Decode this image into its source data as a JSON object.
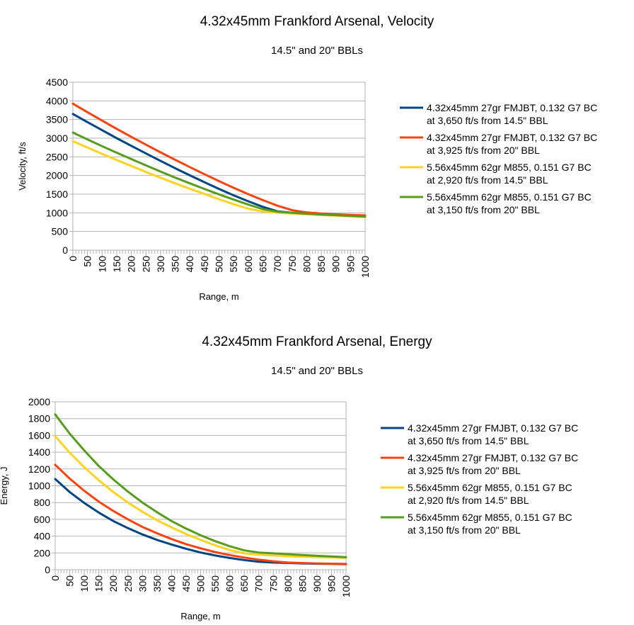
{
  "chart_data": [
    {
      "type": "line",
      "title": "4.32x45mm Frankford Arsenal, Velocity",
      "subtitle": "14.5\" and 20\" BBLs",
      "xlabel": "Range, m",
      "ylabel": "Velocity, ft/s",
      "xlim": [
        0,
        1000
      ],
      "ylim": [
        0,
        4500
      ],
      "x_ticks": [
        0,
        50,
        100,
        150,
        200,
        250,
        300,
        350,
        400,
        450,
        500,
        550,
        600,
        650,
        700,
        750,
        800,
        850,
        900,
        950,
        1000
      ],
      "y_ticks": [
        0,
        500,
        1000,
        1500,
        2000,
        2500,
        3000,
        3500,
        4000,
        4500
      ],
      "grid": true,
      "legend_position": "right",
      "x": [
        0,
        50,
        100,
        150,
        200,
        250,
        300,
        350,
        400,
        450,
        500,
        550,
        600,
        650,
        700,
        750,
        800,
        850,
        900,
        950,
        1000
      ],
      "series": [
        {
          "name": "4.32x45mm 27gr FMJBT, 0.132 G7 BC at 3,650 ft/s from 14.5\" BBL",
          "color": "#004586",
          "values": [
            3650,
            3430,
            3215,
            3000,
            2795,
            2590,
            2390,
            2195,
            2005,
            1820,
            1640,
            1470,
            1310,
            1160,
            1040,
            1000,
            970,
            950,
            930,
            915,
            900
          ]
        },
        {
          "name": "4.32x45mm 27gr FMJBT, 0.132 G7 BC at 3,925 ft/s from 20\" BBL",
          "color": "#ff420e",
          "values": [
            3925,
            3695,
            3470,
            3250,
            3035,
            2825,
            2620,
            2420,
            2225,
            2035,
            1850,
            1670,
            1500,
            1340,
            1190,
            1070,
            1010,
            980,
            960,
            945,
            930
          ]
        },
        {
          "name": "5.56x45mm 62gr M855, 0.151 G7 BC at 2,920 ft/s from 14.5\" BBL",
          "color": "#ffd320",
          "values": [
            2920,
            2750,
            2580,
            2415,
            2255,
            2095,
            1940,
            1790,
            1645,
            1505,
            1365,
            1230,
            1110,
            1035,
            1005,
            980,
            960,
            940,
            925,
            905,
            885
          ]
        },
        {
          "name": "5.56x45mm 62gr M855, 0.151 G7 BC at 3,150 ft/s from 20\" BBL",
          "color": "#579d1c",
          "values": [
            3150,
            2965,
            2785,
            2610,
            2440,
            2270,
            2105,
            1945,
            1790,
            1640,
            1495,
            1355,
            1220,
            1100,
            1030,
            1000,
            975,
            955,
            935,
            915,
            900
          ]
        }
      ]
    },
    {
      "type": "line",
      "title": "4.32x45mm Frankford Arsenal, Energy",
      "subtitle": "14.5\" and 20\" BBLs",
      "xlabel": "Range, m",
      "ylabel": "Energy, J",
      "xlim": [
        0,
        1000
      ],
      "ylim": [
        0,
        2000
      ],
      "x_ticks": [
        0,
        50,
        100,
        150,
        200,
        250,
        300,
        350,
        400,
        450,
        500,
        550,
        600,
        650,
        700,
        750,
        800,
        850,
        900,
        950,
        1000
      ],
      "y_ticks": [
        0,
        200,
        400,
        600,
        800,
        1000,
        1200,
        1400,
        1600,
        1800,
        2000
      ],
      "grid": true,
      "legend_position": "right",
      "x": [
        0,
        50,
        100,
        150,
        200,
        250,
        300,
        350,
        400,
        450,
        500,
        550,
        600,
        650,
        700,
        750,
        800,
        850,
        900,
        950,
        1000
      ],
      "series": [
        {
          "name": "4.32x45mm 27gr FMJBT, 0.132 G7 BC at 3,650 ft/s from 14.5\" BBL",
          "color": "#004586",
          "values": [
            1080,
            925,
            795,
            680,
            580,
            495,
            420,
            355,
            300,
            250,
            205,
            170,
            140,
            115,
            95,
            85,
            80,
            75,
            72,
            70,
            67
          ]
        },
        {
          "name": "4.32x45mm 27gr FMJBT, 0.132 G7 BC at 3,925 ft/s from 20\" BBL",
          "color": "#ff420e",
          "values": [
            1250,
            1085,
            940,
            810,
            700,
            600,
            510,
            435,
            365,
            305,
            255,
            210,
            175,
            145,
            120,
            100,
            85,
            80,
            75,
            72,
            70
          ]
        },
        {
          "name": "5.56x45mm 62gr M855, 0.151 G7 BC at 2,920 ft/s from 14.5\" BBL",
          "color": "#ffd320",
          "values": [
            1590,
            1395,
            1220,
            1065,
            925,
            800,
            690,
            590,
            505,
            425,
            355,
            290,
            235,
            195,
            180,
            170,
            160,
            155,
            150,
            145,
            140
          ]
        },
        {
          "name": "5.56x45mm 62gr M855, 0.151 G7 BC at 3,150 ft/s from 20\" BBL",
          "color": "#579d1c",
          "values": [
            1850,
            1620,
            1420,
            1235,
            1075,
            930,
            800,
            685,
            580,
            490,
            410,
            340,
            280,
            230,
            205,
            195,
            185,
            175,
            165,
            158,
            150
          ]
        }
      ]
    }
  ]
}
